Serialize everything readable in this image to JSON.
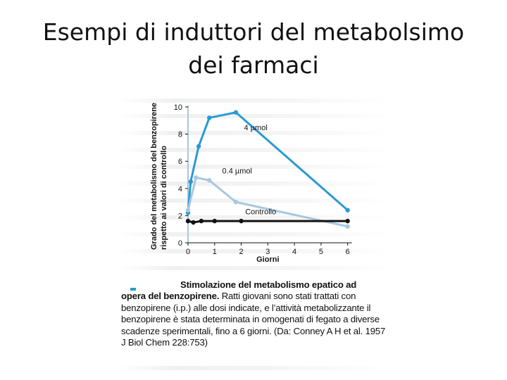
{
  "slide": {
    "title_line1": "Esempi di induttori del metabolsimo",
    "title_line2": "dei farmaci"
  },
  "colors": {
    "series_high": "#2a9ad2",
    "series_low": "#a8c7e0",
    "series_control": "#111111"
  },
  "chart_data": {
    "type": "line",
    "title": "",
    "xlabel": "Giorni",
    "ylabel_line1": "Grado del metabolismo del benzopirene",
    "ylabel_line2": "rispetto ai valori di controllo",
    "xlim": [
      0,
      6.3
    ],
    "ylim": [
      0,
      10
    ],
    "x_ticks": [
      0,
      1,
      2,
      3,
      4,
      5,
      6
    ],
    "y_ticks": [
      0,
      2,
      4,
      6,
      8,
      10
    ],
    "grid": false,
    "series": [
      {
        "name": "4 µmol",
        "color": "#2a9ad2",
        "points": [
          [
            0,
            2.2
          ],
          [
            0.1,
            4.5
          ],
          [
            0.4,
            7.1
          ],
          [
            0.8,
            9.2
          ],
          [
            1.8,
            9.6
          ],
          [
            6,
            2.4
          ]
        ]
      },
      {
        "name": "0.4 µmol",
        "color": "#a8c7e0",
        "points": [
          [
            0,
            2.4
          ],
          [
            0.3,
            4.8
          ],
          [
            0.8,
            4.6
          ],
          [
            1.8,
            3.0
          ],
          [
            6,
            1.2
          ]
        ]
      },
      {
        "name": "Controllo",
        "color": "#111111",
        "points": [
          [
            0,
            1.6
          ],
          [
            0.2,
            1.5
          ],
          [
            0.5,
            1.6
          ],
          [
            1,
            1.6
          ],
          [
            2,
            1.6
          ],
          [
            6,
            1.6
          ]
        ]
      }
    ],
    "annotations": [
      {
        "text": "4 µmol",
        "series": "4 µmol"
      },
      {
        "text": "0.4 µmol",
        "series": "0.4 µmol"
      },
      {
        "text": "Controllo",
        "series": "Controllo"
      }
    ]
  },
  "caption": {
    "bold_title_a": "Stimolazione del metabolismo epatico ad",
    "bold_title_b": "opera del benzopirene.",
    "body": " Ratti giovani sono stati trattati con benzopirene (i.p.) alle dosi indicate, e l’attività metabolizzante il benzopirene è stata determinata in omogenati di fegato a diverse scadenze sperimentali, fino a 6 giorni. (Da: Conney A H et al. 1957 J Biol Chem 228:753)"
  }
}
